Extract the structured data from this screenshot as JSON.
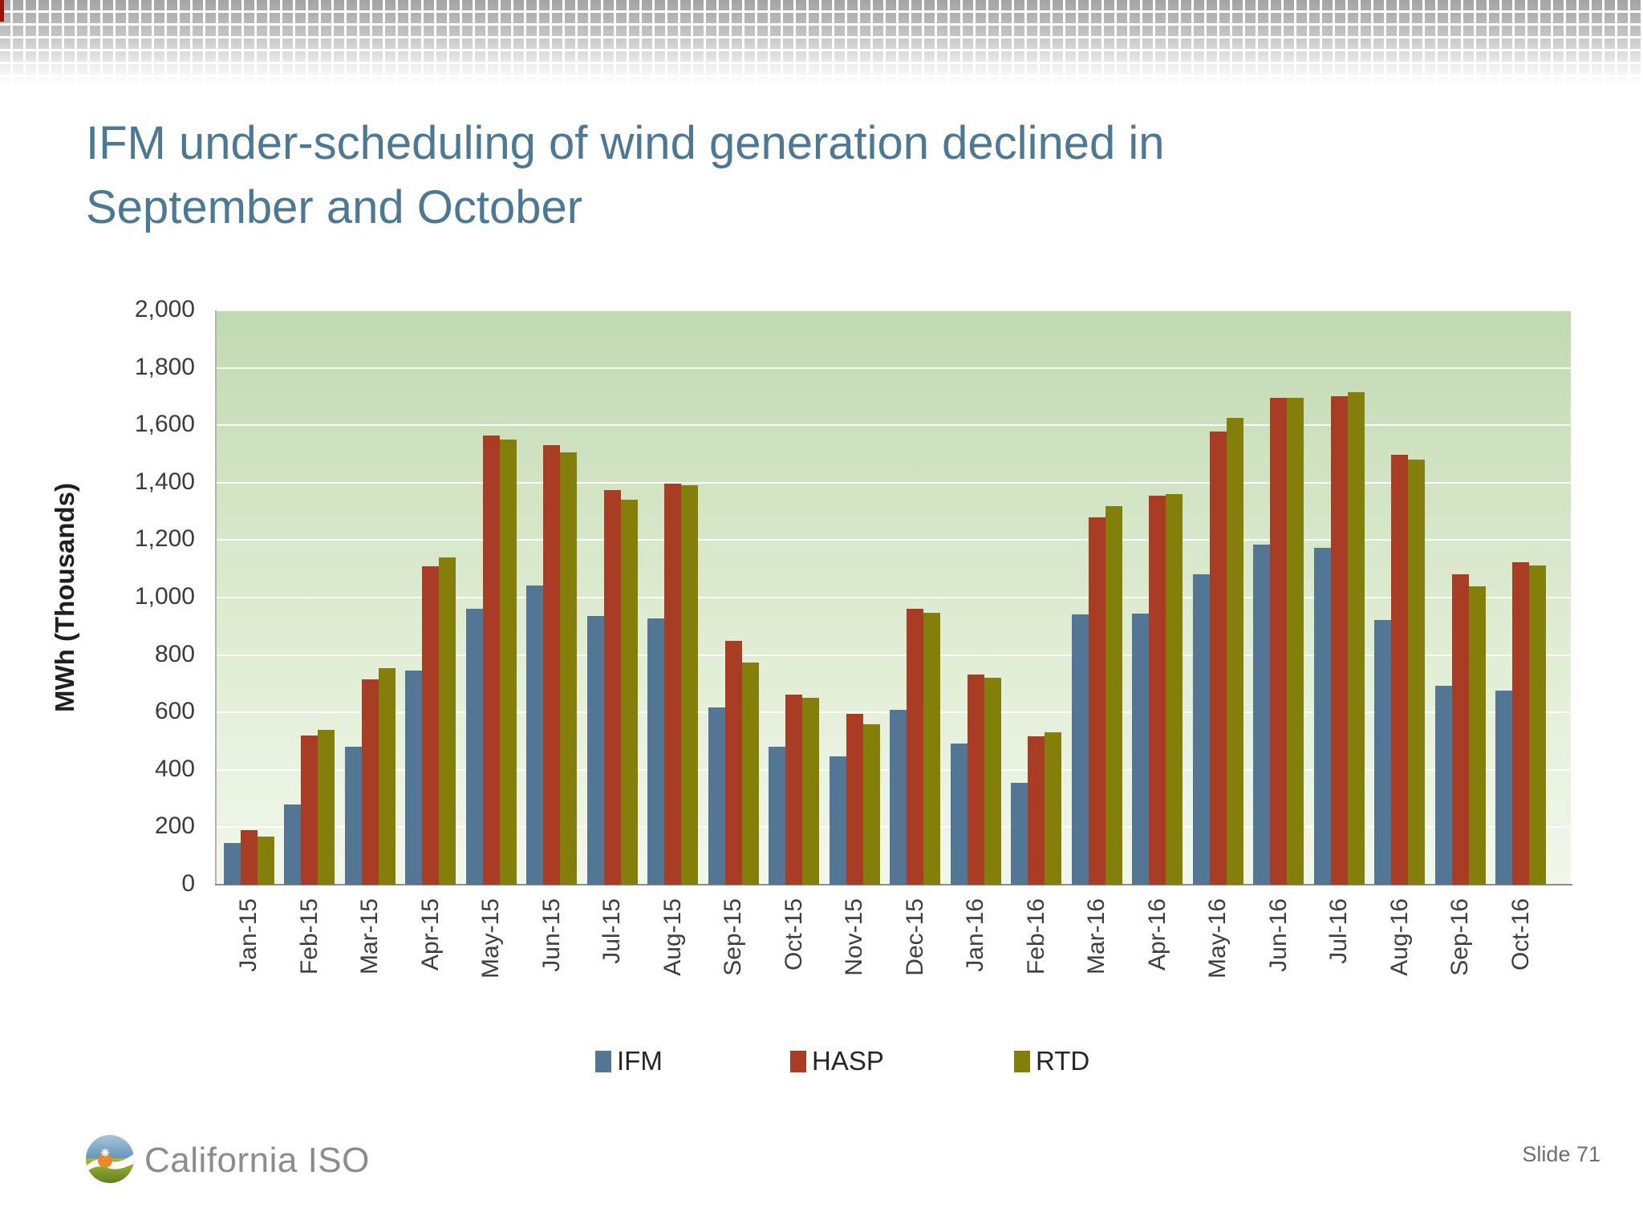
{
  "slide": {
    "title_lines": [
      "IFM under-scheduling of wind generation declined in",
      "September and October"
    ],
    "footer": {
      "logo_text": "California ISO",
      "slide_label": "Slide 71"
    }
  },
  "colors": {
    "title_text": "#4c7896",
    "plot_gradient_top": "#c1d9b2",
    "plot_gradient_bottom": "#f2f7ec",
    "gridline": "#ffffff",
    "axis_text": "#3c3c3c"
  },
  "chart_data": {
    "type": "bar",
    "title": "",
    "xlabel": "",
    "ylabel": "MWh (Thousands)",
    "ylim": [
      0,
      2000
    ],
    "ytick_step": 200,
    "grid": "horizontal white lines every 200",
    "legend_position": "bottom",
    "categories": [
      "Jan-15",
      "Feb-15",
      "Mar-15",
      "Apr-15",
      "May-15",
      "Jun-15",
      "Jul-15",
      "Aug-15",
      "Sep-15",
      "Oct-15",
      "Nov-15",
      "Dec-15",
      "Jan-16",
      "Feb-16",
      "Mar-16",
      "Apr-16",
      "May-16",
      "Jun-16",
      "Jul-16",
      "Aug-16",
      "Sep-16",
      "Oct-16"
    ],
    "series": [
      {
        "name": "IFM",
        "color": "#527693",
        "values": [
          145,
          278,
          480,
          745,
          960,
          1042,
          935,
          928,
          618,
          480,
          448,
          610,
          492,
          354,
          940,
          945,
          1080,
          1185,
          1172,
          922,
          692,
          675
        ]
      },
      {
        "name": "HASP",
        "color": "#a83c25",
        "values": [
          190,
          520,
          715,
          1110,
          1565,
          1530,
          1375,
          1398,
          850,
          662,
          595,
          960,
          732,
          518,
          1278,
          1355,
          1578,
          1695,
          1700,
          1498,
          1080,
          1122
        ]
      },
      {
        "name": "RTD",
        "color": "#847e0a",
        "values": [
          168,
          540,
          755,
          1140,
          1550,
          1505,
          1340,
          1392,
          775,
          650,
          558,
          948,
          720,
          530,
          1318,
          1360,
          1625,
          1695,
          1715,
          1480,
          1038,
          1112
        ]
      }
    ]
  }
}
